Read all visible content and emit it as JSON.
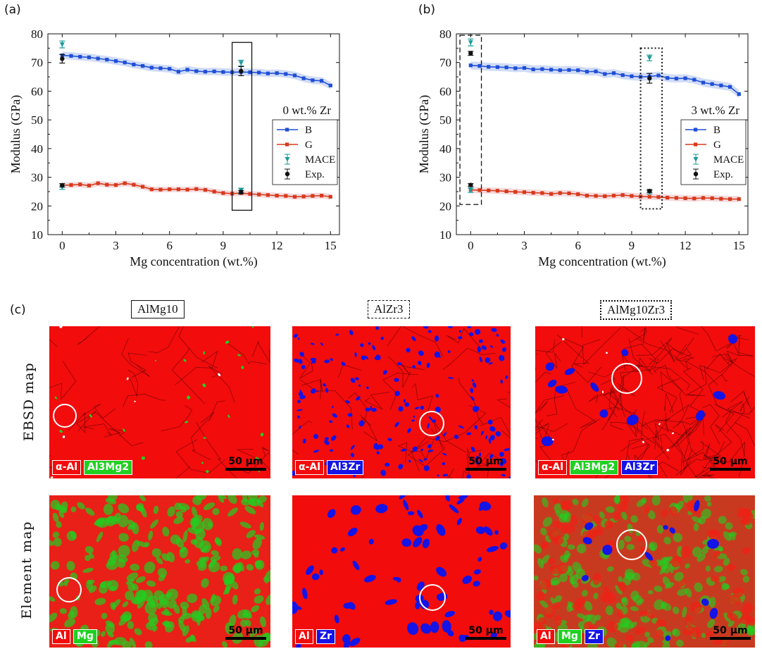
{
  "panel_labels": {
    "a": "(a)",
    "b": "(b)",
    "c": "(c)"
  },
  "colors": {
    "B": "#1f4fd8",
    "G": "#d8391b",
    "B_band": "#c9d6f5",
    "G_band": "#f2d3d6",
    "MACE": "#1a9a9a",
    "Exp": "#111111",
    "al_red": "#f20c0c",
    "mg_green": "#20d020",
    "zr_blue": "#1414e6"
  },
  "chart_data": [
    {
      "type": "line",
      "title": "0 wt.% Zr",
      "xlabel": "Mg concentration (wt.%)",
      "ylabel": "Modulus (GPa)",
      "xlim": [
        -0.8,
        15.5
      ],
      "ylim": [
        10,
        80
      ],
      "xticks": [
        0,
        3,
        6,
        9,
        12,
        15
      ],
      "yticks": [
        10,
        20,
        30,
        40,
        50,
        60,
        70,
        80
      ],
      "x": [
        0,
        0.5,
        1,
        1.5,
        2,
        2.5,
        3,
        3.5,
        4,
        4.5,
        5,
        5.5,
        6,
        6.5,
        7,
        7.5,
        8,
        8.5,
        9,
        9.5,
        10,
        10.5,
        11,
        11.5,
        12,
        12.5,
        13,
        13.5,
        14,
        14.5,
        15
      ],
      "series": [
        {
          "name": "B",
          "values": [
            72.5,
            72.3,
            72.0,
            71.8,
            71.4,
            71.0,
            70.5,
            70.0,
            69.3,
            68.8,
            68.2,
            68.0,
            67.8,
            66.8,
            67.5,
            67.0,
            66.8,
            66.9,
            66.7,
            66.6,
            66.7,
            66.6,
            66.5,
            66.2,
            66.3,
            66.0,
            65.5,
            64.5,
            63.8,
            63.6,
            62.0
          ],
          "band": 1.3
        },
        {
          "name": "G",
          "values": [
            27.2,
            27.3,
            27.5,
            27.1,
            27.9,
            27.4,
            27.3,
            27.9,
            27.4,
            26.7,
            25.8,
            25.7,
            25.8,
            25.8,
            25.7,
            25.9,
            25.6,
            25.0,
            24.5,
            24.3,
            24.5,
            24.2,
            24.0,
            23.8,
            23.6,
            23.5,
            23.2,
            23.3,
            23.5,
            23.6,
            23.2
          ],
          "band": 1.0
        }
      ],
      "points": [
        {
          "name": "MACE",
          "x": 0,
          "y": 76.3,
          "err": 1.2
        },
        {
          "name": "MACE",
          "x": 0,
          "y": 26.5,
          "err": 0.7
        },
        {
          "name": "Exp.",
          "x": 0,
          "y": 71.3,
          "err": 1.5
        },
        {
          "name": "Exp.",
          "x": 0,
          "y": 27.2,
          "err": 0.6
        },
        {
          "name": "MACE",
          "x": 10,
          "y": 69.8,
          "err": 1.0
        },
        {
          "name": "MACE",
          "x": 10,
          "y": 25.4,
          "err": 0.8
        },
        {
          "name": "Exp.",
          "x": 10,
          "y": 67.0,
          "err": 1.6
        },
        {
          "name": "Exp.",
          "x": 10,
          "y": 24.8,
          "err": 0.6
        }
      ],
      "highlight_box": {
        "style": "solid",
        "x_range": [
          9.5,
          10.6
        ],
        "y_range": [
          18.5,
          77
        ]
      },
      "legend": [
        "B",
        "G",
        "MACE",
        "Exp."
      ]
    },
    {
      "type": "line",
      "title": "3 wt.% Zr",
      "xlabel": "Mg concentration (wt.%)",
      "ylabel": "Modulus (GPa)",
      "xlim": [
        -0.8,
        15.5
      ],
      "ylim": [
        10,
        80
      ],
      "xticks": [
        0,
        3,
        6,
        9,
        12,
        15
      ],
      "yticks": [
        10,
        20,
        30,
        40,
        50,
        60,
        70,
        80
      ],
      "x": [
        0,
        0.5,
        1,
        1.5,
        2,
        2.5,
        3,
        3.5,
        4,
        4.5,
        5,
        5.5,
        6,
        6.5,
        7,
        7.5,
        8,
        8.5,
        9,
        9.5,
        10,
        10.5,
        11,
        11.5,
        12,
        12.5,
        13,
        13.5,
        14,
        14.5,
        15
      ],
      "series": [
        {
          "name": "B",
          "values": [
            69.0,
            68.8,
            68.5,
            68.4,
            68.3,
            68.0,
            68.1,
            67.6,
            67.7,
            67.5,
            67.3,
            67.4,
            67.3,
            66.8,
            66.9,
            66.0,
            66.3,
            65.6,
            65.2,
            65.0,
            65.1,
            65.5,
            64.6,
            64.4,
            64.5,
            64.0,
            63.0,
            62.5,
            62.0,
            61.5,
            59.0
          ],
          "band": 1.4
        },
        {
          "name": "G",
          "values": [
            25.6,
            25.5,
            25.4,
            25.3,
            25.1,
            24.9,
            24.8,
            24.6,
            24.5,
            24.2,
            24.5,
            24.4,
            24.1,
            23.6,
            23.5,
            23.4,
            23.6,
            23.8,
            23.5,
            23.3,
            23.2,
            23.1,
            22.9,
            22.8,
            22.7,
            22.6,
            22.8,
            22.7,
            22.5,
            22.4,
            22.4
          ],
          "band": 1.1
        }
      ],
      "points": [
        {
          "name": "MACE",
          "x": 0,
          "y": 77.0,
          "err": 1.2
        },
        {
          "name": "MACE",
          "x": 0,
          "y": 25.5,
          "err": 0.8
        },
        {
          "name": "Exp.",
          "x": 0,
          "y": 73.2,
          "err": 0.7
        },
        {
          "name": "Exp.",
          "x": 0,
          "y": 27.3,
          "err": 0.5
        },
        {
          "name": "MACE",
          "x": 10,
          "y": 71.6,
          "err": 1.0
        },
        {
          "name": "MACE",
          "x": 10,
          "y": 24.8,
          "err": 0.6
        },
        {
          "name": "Exp.",
          "x": 10,
          "y": 64.5,
          "err": 1.7
        },
        {
          "name": "Exp.",
          "x": 10,
          "y": 25.2,
          "err": 0.5
        }
      ],
      "highlight_boxes": [
        {
          "style": "dashed",
          "x_range": [
            -0.6,
            0.6
          ],
          "y_range": [
            20.5,
            79.5
          ]
        },
        {
          "style": "dotted",
          "x_range": [
            9.5,
            10.7
          ],
          "y_range": [
            19,
            75
          ]
        }
      ],
      "legend": [
        "B",
        "G",
        "MACE",
        "Exp."
      ]
    }
  ],
  "micrographs": {
    "columns": [
      {
        "title": "AlMg10",
        "border": "solid"
      },
      {
        "title": "AlZr3",
        "border": "dashed"
      },
      {
        "title": "AlMg10Zr3",
        "border": "dotted"
      }
    ],
    "rows": {
      "ebsd": "EBSD map",
      "element": "Element map"
    },
    "scale": "50 µm",
    "ebsd_legends": [
      [
        {
          "text": "α-Al",
          "color": "red"
        },
        {
          "text": "Al3Mg2",
          "color": "green"
        }
      ],
      [
        {
          "text": "α-Al",
          "color": "red"
        },
        {
          "text": "Al3Zr",
          "color": "blue"
        }
      ],
      [
        {
          "text": "α-Al",
          "color": "red"
        },
        {
          "text": "Al3Mg2",
          "color": "green"
        },
        {
          "text": "Al3Zr",
          "color": "blue"
        }
      ]
    ],
    "element_legends": [
      [
        {
          "text": "Al",
          "color": "red"
        },
        {
          "text": "Mg",
          "color": "green"
        }
      ],
      [
        {
          "text": "Al",
          "color": "red"
        },
        {
          "text": "Zr",
          "color": "blue"
        }
      ],
      [
        {
          "text": "Al",
          "color": "red"
        },
        {
          "text": "Mg",
          "color": "green"
        },
        {
          "text": "Zr",
          "color": "blue"
        }
      ]
    ]
  }
}
